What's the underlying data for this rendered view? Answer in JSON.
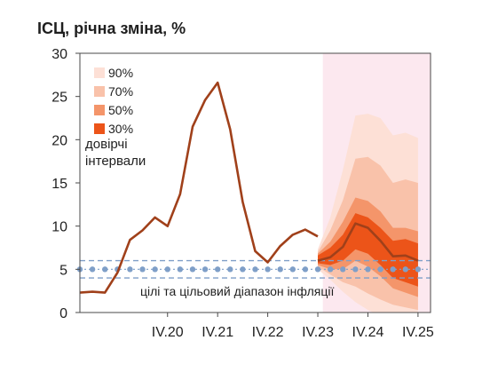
{
  "chart_data": {
    "type": "line",
    "title": "ІСЦ, річна зміна, %",
    "ylim": [
      0,
      30
    ],
    "y_ticks": [
      "0",
      "5",
      "10",
      "15",
      "20",
      "25",
      "30"
    ],
    "x_tick_labels": [
      {
        "label": "IV.20",
        "q": 8
      },
      {
        "label": "IV.21",
        "q": 12
      },
      {
        "label": "IV.22",
        "q": 16
      },
      {
        "label": "IV.23",
        "q": 20
      },
      {
        "label": "IV.24",
        "q": 24
      },
      {
        "label": "IV.25",
        "q": 28
      }
    ],
    "x_domain": [
      1,
      29
    ],
    "forecast_start_q": 20.4,
    "forecast_band_color": "#fce8ef",
    "actual": {
      "color": "#a0401a",
      "q": [
        1,
        2,
        3,
        4,
        5,
        6,
        7,
        8,
        9,
        10,
        11,
        12,
        13,
        14,
        15,
        16,
        17,
        18,
        19,
        20
      ],
      "values": [
        2.3,
        2.4,
        2.3,
        4.6,
        8.4,
        9.5,
        11.0,
        10.0,
        13.7,
        21.5,
        24.6,
        26.6,
        21.2,
        12.8,
        7.1,
        5.8,
        7.7,
        9.0,
        9.6,
        8.8
      ]
    },
    "forecast": {
      "q": [
        20,
        21,
        22,
        23,
        24,
        25,
        26,
        27,
        28
      ],
      "central": [
        6.0,
        6.4,
        7.6,
        10.3,
        9.8,
        8.3,
        6.5,
        6.6,
        6.0
      ],
      "bands": [
        {
          "level": "90%",
          "color": "#fde0d6",
          "low": [
            5.0,
            3.8,
            2.4,
            1.2,
            0.3,
            -0.4,
            -0.8,
            -1.0,
            -1.2
          ],
          "high": [
            7.3,
            11.0,
            16.5,
            22.8,
            23.0,
            22.5,
            20.5,
            20.8,
            20.2
          ]
        },
        {
          "level": "70%",
          "color": "#f9c2aa",
          "low": [
            5.3,
            4.4,
            3.5,
            3.0,
            2.2,
            1.5,
            0.9,
            0.6,
            0.3
          ],
          "high": [
            7.0,
            9.5,
            13.0,
            17.8,
            18.0,
            17.0,
            15.0,
            15.4,
            15.0
          ]
        },
        {
          "level": "50%",
          "color": "#f4956a",
          "low": [
            5.5,
            5.0,
            5.0,
            6.0,
            5.3,
            4.2,
            2.8,
            2.3,
            1.8
          ],
          "high": [
            6.8,
            8.2,
            10.5,
            13.3,
            12.9,
            11.7,
            9.8,
            9.8,
            9.4
          ]
        },
        {
          "level": "30%",
          "color": "#ec5419",
          "low": [
            5.7,
            5.5,
            6.0,
            7.3,
            6.8,
            5.5,
            4.0,
            3.5,
            3.0
          ],
          "high": [
            6.6,
            7.5,
            9.0,
            11.5,
            11.0,
            9.8,
            8.3,
            8.5,
            8.0
          ]
        }
      ]
    },
    "target": {
      "label": "цілі та цільовий діапазон інфляції",
      "center": 5,
      "range": [
        4,
        6
      ],
      "color": "#7f9fc8",
      "marker_q": [
        1,
        2,
        3,
        4,
        5,
        6,
        7,
        8,
        9,
        10,
        11,
        12,
        13,
        14,
        15,
        16,
        17,
        18,
        19,
        20,
        21,
        22,
        23,
        24,
        25,
        26,
        27,
        28
      ]
    },
    "legend": {
      "title_lines": [
        "довірчі",
        "інтервали"
      ],
      "placement": "top-left"
    }
  }
}
